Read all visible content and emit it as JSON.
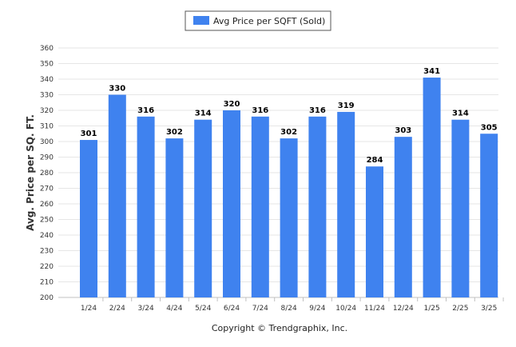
{
  "chart_data": {
    "type": "bar",
    "categories": [
      "1/24",
      "2/24",
      "3/24",
      "4/24",
      "5/24",
      "6/24",
      "7/24",
      "8/24",
      "9/24",
      "10/24",
      "11/24",
      "12/24",
      "1/25",
      "2/25",
      "3/25"
    ],
    "series": [
      {
        "name": "Avg Price per SQFT (Sold)",
        "values": [
          301,
          330,
          316,
          302,
          314,
          320,
          316,
          302,
          316,
          319,
          284,
          303,
          341,
          314,
          305
        ]
      }
    ],
    "ylabel": "Avg. Price per SQ. FT.",
    "xlabel": "",
    "ylim": [
      200,
      360
    ],
    "yticks": [
      200,
      210,
      220,
      230,
      240,
      250,
      260,
      270,
      280,
      290,
      300,
      310,
      320,
      330,
      340,
      350,
      360
    ],
    "grid": true,
    "legend_position": "top-center",
    "data_labels": true
  },
  "colors": {
    "bar": "#3f82ef",
    "grid": "#e6e6e6",
    "axis": "#c0c0c0"
  },
  "footer": {
    "copyright": "Copyright © Trendgraphix, Inc."
  }
}
